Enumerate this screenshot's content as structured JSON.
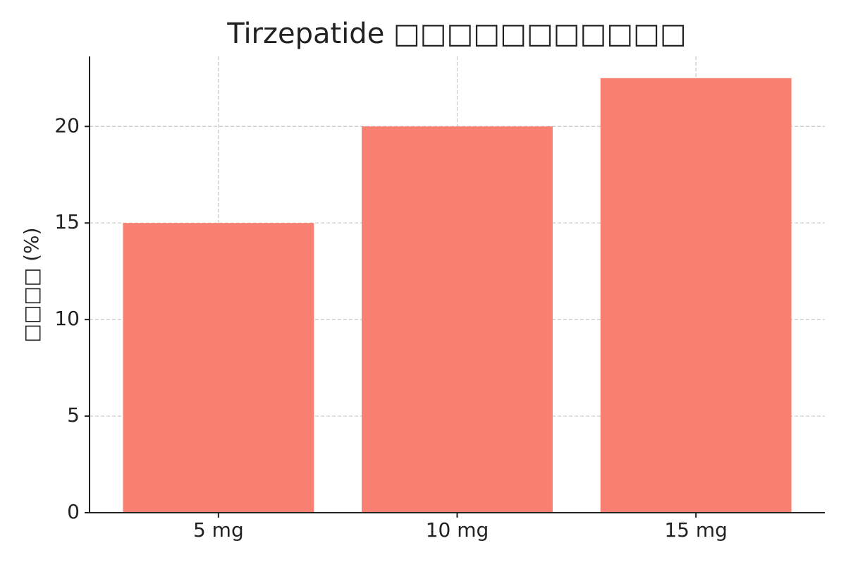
{
  "chart_data": {
    "type": "bar",
    "title": "Tirzepatide □□□□□□□□□□□",
    "y_label": "□□□□ (%)",
    "categories": [
      "5 mg",
      "10 mg",
      "15 mg"
    ],
    "values": [
      15,
      20,
      22.5
    ],
    "color": "#fa8072",
    "ylim": [
      0,
      23.625
    ],
    "yticks": [
      0,
      5,
      10,
      15,
      20
    ],
    "grid": true
  }
}
